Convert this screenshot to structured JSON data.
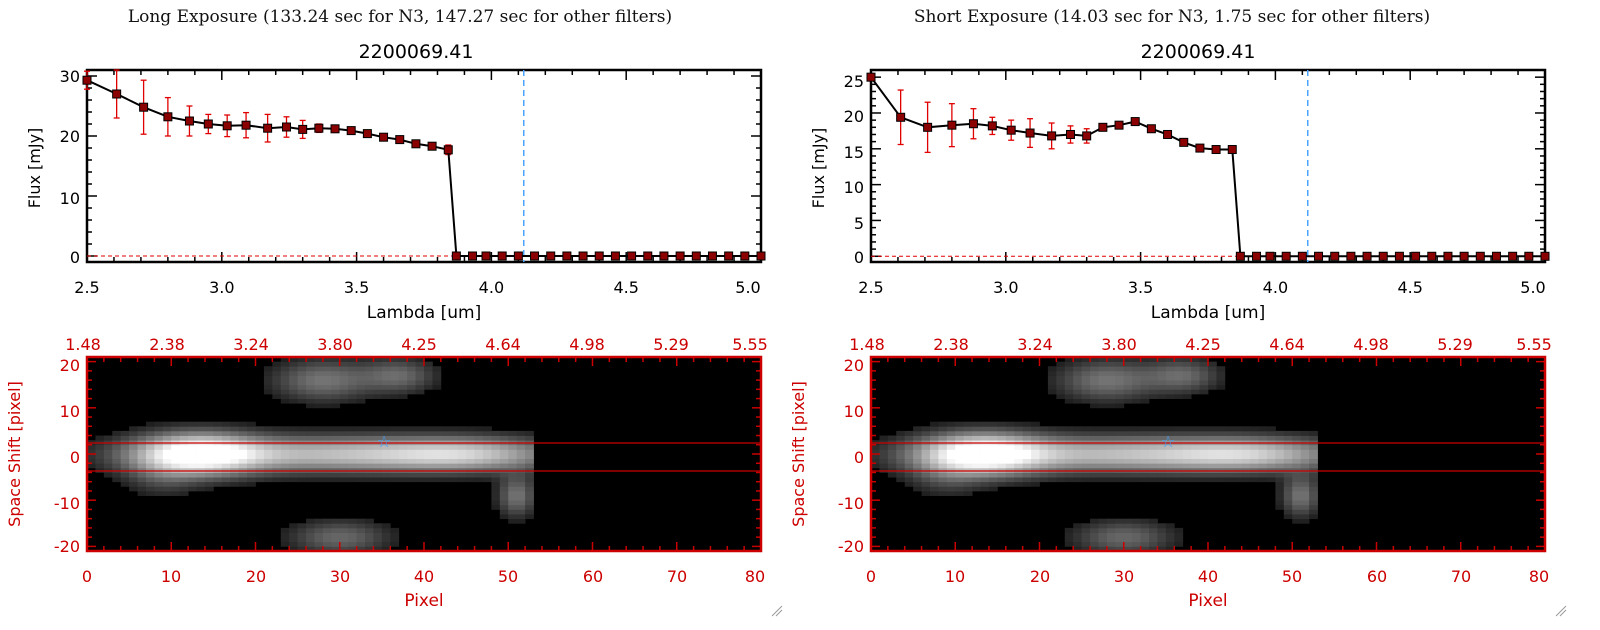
{
  "colors": {
    "axis_black": "#000000",
    "axis_red": "#cc0000",
    "marker": "#8b0000",
    "errorbar": "#e00000",
    "dashed_line": "#4aa3ff",
    "star": "#3aa0ff",
    "image_bg": "#000000"
  },
  "panels": [
    {
      "id": "long",
      "header": "Long Exposure (133.24 sec for N3, 147.27 sec for other filters)",
      "spectrum": {
        "title": "2200069.41",
        "xlabel": "Lambda [um]",
        "ylabel": "Flux [mJy]",
        "xticks": [
          "2.5",
          "3.0",
          "3.5",
          "4.0",
          "4.5",
          "5.0"
        ],
        "yticks": [
          "0",
          "10",
          "20",
          "30"
        ]
      },
      "image": {
        "xlabel": "Pixel",
        "ylabel": "Space Shift [pixel]",
        "xticks": [
          "0",
          "10",
          "20",
          "30",
          "40",
          "50",
          "60",
          "70",
          "80"
        ],
        "yticks": [
          "20",
          "10",
          "0",
          "-10",
          "-20"
        ],
        "top_ticks": [
          "1.48",
          "2.38",
          "3.24",
          "3.80",
          "4.25",
          "4.64",
          "4.98",
          "5.29",
          "5.55"
        ]
      }
    },
    {
      "id": "short",
      "header": "Short Exposure (14.03 sec for N3, 1.75 sec for other filters)",
      "spectrum": {
        "title": "2200069.41",
        "xlabel": "Lambda [um]",
        "ylabel": "Flux [mJy]",
        "xticks": [
          "2.5",
          "3.0",
          "3.5",
          "4.0",
          "4.5",
          "5.0"
        ],
        "yticks": [
          "0",
          "5",
          "10",
          "15",
          "20",
          "25"
        ]
      },
      "image": {
        "xlabel": "Pixel",
        "ylabel": "Space Shift [pixel]",
        "xticks": [
          "0",
          "10",
          "20",
          "30",
          "40",
          "50",
          "60",
          "70",
          "80"
        ],
        "yticks": [
          "20",
          "10",
          "0",
          "-10",
          "-20"
        ],
        "top_ticks": [
          "1.48",
          "2.38",
          "3.24",
          "3.80",
          "4.25",
          "4.64",
          "4.98",
          "5.29",
          "5.55"
        ]
      }
    }
  ],
  "chart_data": [
    {
      "type": "line",
      "panel": "long",
      "title": "2200069.41",
      "xlabel": "Lambda [um]",
      "ylabel": "Flux [mJy]",
      "xlim": [
        2.5,
        5.0
      ],
      "ylim": [
        -1,
        31
      ],
      "vline_x": 4.12,
      "x": [
        2.5,
        2.61,
        2.71,
        2.8,
        2.88,
        2.95,
        3.02,
        3.09,
        3.17,
        3.24,
        3.3,
        3.36,
        3.42,
        3.48,
        3.54,
        3.6,
        3.66,
        3.72,
        3.78,
        3.84,
        3.87,
        3.93,
        3.98,
        4.04,
        4.1,
        4.16,
        4.22,
        4.28,
        4.34,
        4.4,
        4.46,
        4.52,
        4.58,
        4.64,
        4.7,
        4.76,
        4.82,
        4.88,
        4.94,
        5.0
      ],
      "y": [
        29.3,
        27.0,
        24.8,
        23.2,
        22.5,
        22.0,
        21.7,
        21.8,
        21.3,
        21.5,
        21.1,
        21.3,
        21.2,
        20.9,
        20.4,
        19.8,
        19.4,
        18.7,
        18.3,
        17.7,
        0,
        0,
        0,
        0,
        0,
        0,
        0,
        0,
        0,
        0,
        0,
        0,
        0,
        0,
        0,
        0,
        0,
        0,
        0,
        0
      ],
      "yerr": [
        1.5,
        4.0,
        4.5,
        3.2,
        2.5,
        1.6,
        1.8,
        2.1,
        2.3,
        1.7,
        1.5,
        0.7,
        0.6,
        0.5,
        0.4,
        0.4,
        0.4,
        0.5,
        0.5,
        0.8,
        0,
        0,
        0,
        0,
        0,
        0,
        0,
        0,
        0,
        0,
        0,
        0,
        0,
        0,
        0,
        0,
        0,
        0,
        0,
        0
      ]
    },
    {
      "type": "line",
      "panel": "short",
      "title": "2200069.41",
      "xlabel": "Lambda [um]",
      "ylabel": "Flux [mJy]",
      "xlim": [
        2.5,
        5.0
      ],
      "ylim": [
        -0.8,
        26
      ],
      "vline_x": 4.12,
      "x": [
        2.5,
        2.61,
        2.71,
        2.8,
        2.88,
        2.95,
        3.02,
        3.09,
        3.17,
        3.24,
        3.3,
        3.36,
        3.42,
        3.48,
        3.54,
        3.6,
        3.66,
        3.72,
        3.78,
        3.84,
        3.87,
        3.93,
        3.98,
        4.04,
        4.1,
        4.16,
        4.22,
        4.28,
        4.34,
        4.4,
        4.46,
        4.52,
        4.58,
        4.64,
        4.7,
        4.76,
        4.82,
        4.88,
        4.94,
        5.0
      ],
      "y": [
        25.0,
        19.4,
        18.0,
        18.3,
        18.5,
        18.2,
        17.6,
        17.2,
        16.8,
        17.0,
        16.8,
        18.0,
        18.3,
        18.8,
        17.8,
        17.0,
        15.9,
        15.1,
        14.9,
        14.9,
        0,
        0,
        0,
        0,
        0,
        0,
        0,
        0,
        0,
        0,
        0,
        0,
        0,
        0,
        0,
        0,
        0,
        0,
        0,
        0
      ],
      "yerr": [
        0.5,
        3.8,
        3.5,
        3.0,
        2.1,
        1.2,
        1.4,
        2.0,
        1.8,
        1.2,
        1.0,
        0.5,
        0.4,
        0.4,
        0.4,
        0.4,
        0.4,
        0.3,
        0.3,
        0.5,
        0,
        0,
        0,
        0,
        0,
        0,
        0,
        0,
        0,
        0,
        0,
        0,
        0,
        0,
        0,
        0,
        0,
        0,
        0,
        0
      ]
    },
    {
      "type": "heatmap",
      "panel": "long-image",
      "xlabel": "Pixel",
      "ylabel": "Space Shift [pixel]",
      "xlim": [
        0,
        80
      ],
      "ylim": [
        -21,
        21
      ],
      "top_axis_label_values": [
        1.48,
        2.38,
        3.24,
        3.8,
        4.25,
        4.64,
        4.98,
        5.29,
        5.55
      ],
      "aperture_lines_y": [
        3,
        -3
      ],
      "star_marker": {
        "x": 36,
        "y": 3.5
      },
      "sources": [
        {
          "x": 13,
          "y": 0,
          "peak": 1.0,
          "sx": 5,
          "sy": 3
        },
        {
          "x": 30,
          "y": 0,
          "peak": 0.65,
          "sx": 14,
          "sy": 2.6
        },
        {
          "x": 45,
          "y": 0,
          "peak": 0.45,
          "sx": 7,
          "sy": 2.4
        },
        {
          "x": 28,
          "y": 16,
          "peak": 0.35,
          "sx": 4,
          "sy": 3
        },
        {
          "x": 37,
          "y": 17,
          "peak": 0.3,
          "sx": 3,
          "sy": 2.5
        },
        {
          "x": 30,
          "y": -18,
          "peak": 0.3,
          "sx": 4,
          "sy": 2.5
        },
        {
          "x": 51,
          "y": -9,
          "peak": 0.35,
          "sx": 1.5,
          "sy": 3
        },
        {
          "x": 9,
          "y": -5,
          "peak": 0.15,
          "sx": 3,
          "sy": 3
        }
      ],
      "data_cutoff_x": 52.5
    },
    {
      "type": "heatmap",
      "panel": "short-image",
      "xlabel": "Pixel",
      "ylabel": "Space Shift [pixel]",
      "xlim": [
        0,
        80
      ],
      "ylim": [
        -21,
        21
      ],
      "top_axis_label_values": [
        1.48,
        2.38,
        3.24,
        3.8,
        4.25,
        4.64,
        4.98,
        5.29,
        5.55
      ],
      "aperture_lines_y": [
        3,
        -3
      ],
      "star_marker": {
        "x": 36,
        "y": 3.5
      },
      "sources": [
        {
          "x": 13,
          "y": 0,
          "peak": 1.0,
          "sx": 5,
          "sy": 3
        },
        {
          "x": 30,
          "y": 0,
          "peak": 0.65,
          "sx": 14,
          "sy": 2.6
        },
        {
          "x": 45,
          "y": 0,
          "peak": 0.45,
          "sx": 7,
          "sy": 2.4
        },
        {
          "x": 28,
          "y": 16,
          "peak": 0.35,
          "sx": 4,
          "sy": 3
        },
        {
          "x": 37,
          "y": 17,
          "peak": 0.3,
          "sx": 3,
          "sy": 2.5
        },
        {
          "x": 30,
          "y": -18,
          "peak": 0.3,
          "sx": 4,
          "sy": 2.5
        },
        {
          "x": 51,
          "y": -9,
          "peak": 0.35,
          "sx": 1.5,
          "sy": 3
        },
        {
          "x": 9,
          "y": -5,
          "peak": 0.15,
          "sx": 3,
          "sy": 3
        }
      ],
      "data_cutoff_x": 52.5
    }
  ]
}
